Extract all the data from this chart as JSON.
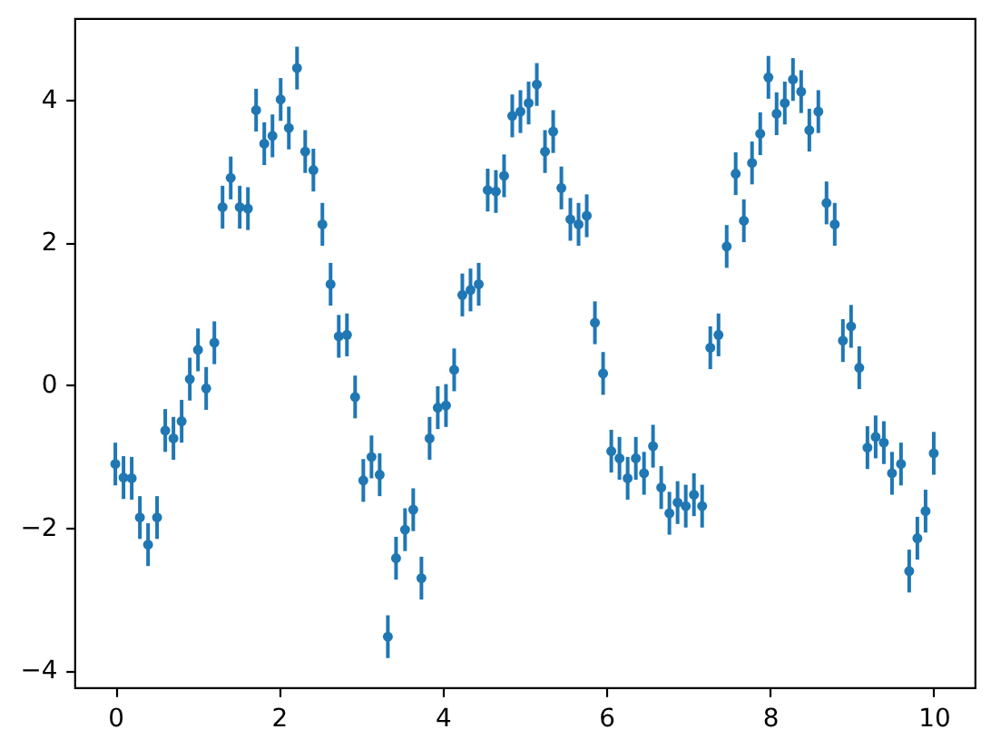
{
  "chart_data": {
    "type": "scatter",
    "color": "#1f77b4",
    "marker": "circle",
    "grid": false,
    "x": [
      0,
      0.1,
      0.2,
      0.3,
      0.4,
      0.51,
      0.61,
      0.71,
      0.81,
      0.91,
      1.01,
      1.11,
      1.21,
      1.31,
      1.41,
      1.52,
      1.62,
      1.72,
      1.82,
      1.92,
      2.02,
      2.12,
      2.22,
      2.32,
      2.42,
      2.53,
      2.63,
      2.73,
      2.83,
      2.93,
      3.03,
      3.13,
      3.23,
      3.33,
      3.43,
      3.54,
      3.64,
      3.74,
      3.84,
      3.94,
      4.04,
      4.14,
      4.24,
      4.34,
      4.44,
      4.55,
      4.65,
      4.75,
      4.85,
      4.95,
      5.05,
      5.15,
      5.25,
      5.35,
      5.45,
      5.56,
      5.66,
      5.76,
      5.86,
      5.96,
      6.06,
      6.16,
      6.26,
      6.36,
      6.46,
      6.57,
      6.67,
      6.77,
      6.87,
      6.97,
      7.07,
      7.17,
      7.27,
      7.37,
      7.47,
      7.58,
      7.68,
      7.78,
      7.88,
      7.98,
      8.08,
      8.18,
      8.28,
      8.38,
      8.48,
      8.59,
      8.69,
      8.79,
      8.89,
      8.99,
      9.09,
      9.19,
      9.29,
      9.39,
      9.49,
      9.6,
      9.7,
      9.8,
      9.9,
      10
    ],
    "values": [
      -1.11,
      -1.3,
      -1.31,
      -1.86,
      -2.24,
      -1.86,
      -0.64,
      -0.75,
      -0.51,
      0.08,
      0.49,
      -0.05,
      0.59,
      2.49,
      2.9,
      2.49,
      2.47,
      3.85,
      3.38,
      3.49,
      4.0,
      3.6,
      4.44,
      3.27,
      3.01,
      2.25,
      1.41,
      0.68,
      0.7,
      -0.17,
      -1.34,
      -1.01,
      -1.26,
      -3.53,
      -2.43,
      -2.03,
      -1.75,
      -2.71,
      -0.75,
      -0.32,
      -0.29,
      0.21,
      1.26,
      1.33,
      1.41,
      2.73,
      2.71,
      2.93,
      3.77,
      3.83,
      3.95,
      4.21,
      3.27,
      3.55,
      2.76,
      2.32,
      2.25,
      2.37,
      0.87,
      0.16,
      -0.93,
      -1.03,
      -1.31,
      -1.03,
      -1.24,
      -0.86,
      -1.44,
      -1.8,
      -1.65,
      -1.7,
      -1.54,
      -1.7,
      0.52,
      0.7,
      1.94,
      2.96,
      2.3,
      3.11,
      3.52,
      4.31,
      3.8,
      3.95,
      4.28,
      4.11,
      3.57,
      3.83,
      2.55,
      2.25,
      0.62,
      0.82,
      0.24,
      -0.88,
      -0.73,
      -0.81,
      -1.24,
      -1.11,
      -2.61,
      -2.15,
      -1.77,
      -0.96
    ],
    "errors": [
      0.3,
      0.3,
      0.3,
      0.3,
      0.3,
      0.3,
      0.3,
      0.3,
      0.3,
      0.3,
      0.3,
      0.3,
      0.3,
      0.3,
      0.3,
      0.3,
      0.3,
      0.3,
      0.3,
      0.3,
      0.3,
      0.3,
      0.3,
      0.3,
      0.3,
      0.3,
      0.3,
      0.3,
      0.3,
      0.3,
      0.3,
      0.3,
      0.3,
      0.3,
      0.3,
      0.3,
      0.3,
      0.3,
      0.3,
      0.3,
      0.3,
      0.3,
      0.3,
      0.3,
      0.3,
      0.3,
      0.3,
      0.3,
      0.3,
      0.3,
      0.3,
      0.3,
      0.3,
      0.3,
      0.3,
      0.3,
      0.3,
      0.3,
      0.3,
      0.3,
      0.3,
      0.3,
      0.3,
      0.3,
      0.3,
      0.3,
      0.3,
      0.3,
      0.3,
      0.3,
      0.3,
      0.3,
      0.3,
      0.3,
      0.3,
      0.3,
      0.3,
      0.3,
      0.3,
      0.3,
      0.3,
      0.3,
      0.3,
      0.3,
      0.3,
      0.3,
      0.3,
      0.3,
      0.3,
      0.3,
      0.3,
      0.3,
      0.3,
      0.3,
      0.3,
      0.3,
      0.3,
      0.3,
      0.3,
      0.3
    ],
    "xlim": [
      -0.5,
      10.5
    ],
    "ylim": [
      -4.24,
      5.14
    ],
    "xticks": [
      0,
      2,
      4,
      6,
      8,
      10
    ],
    "yticks": [
      -4,
      -2,
      0,
      2,
      4
    ]
  }
}
